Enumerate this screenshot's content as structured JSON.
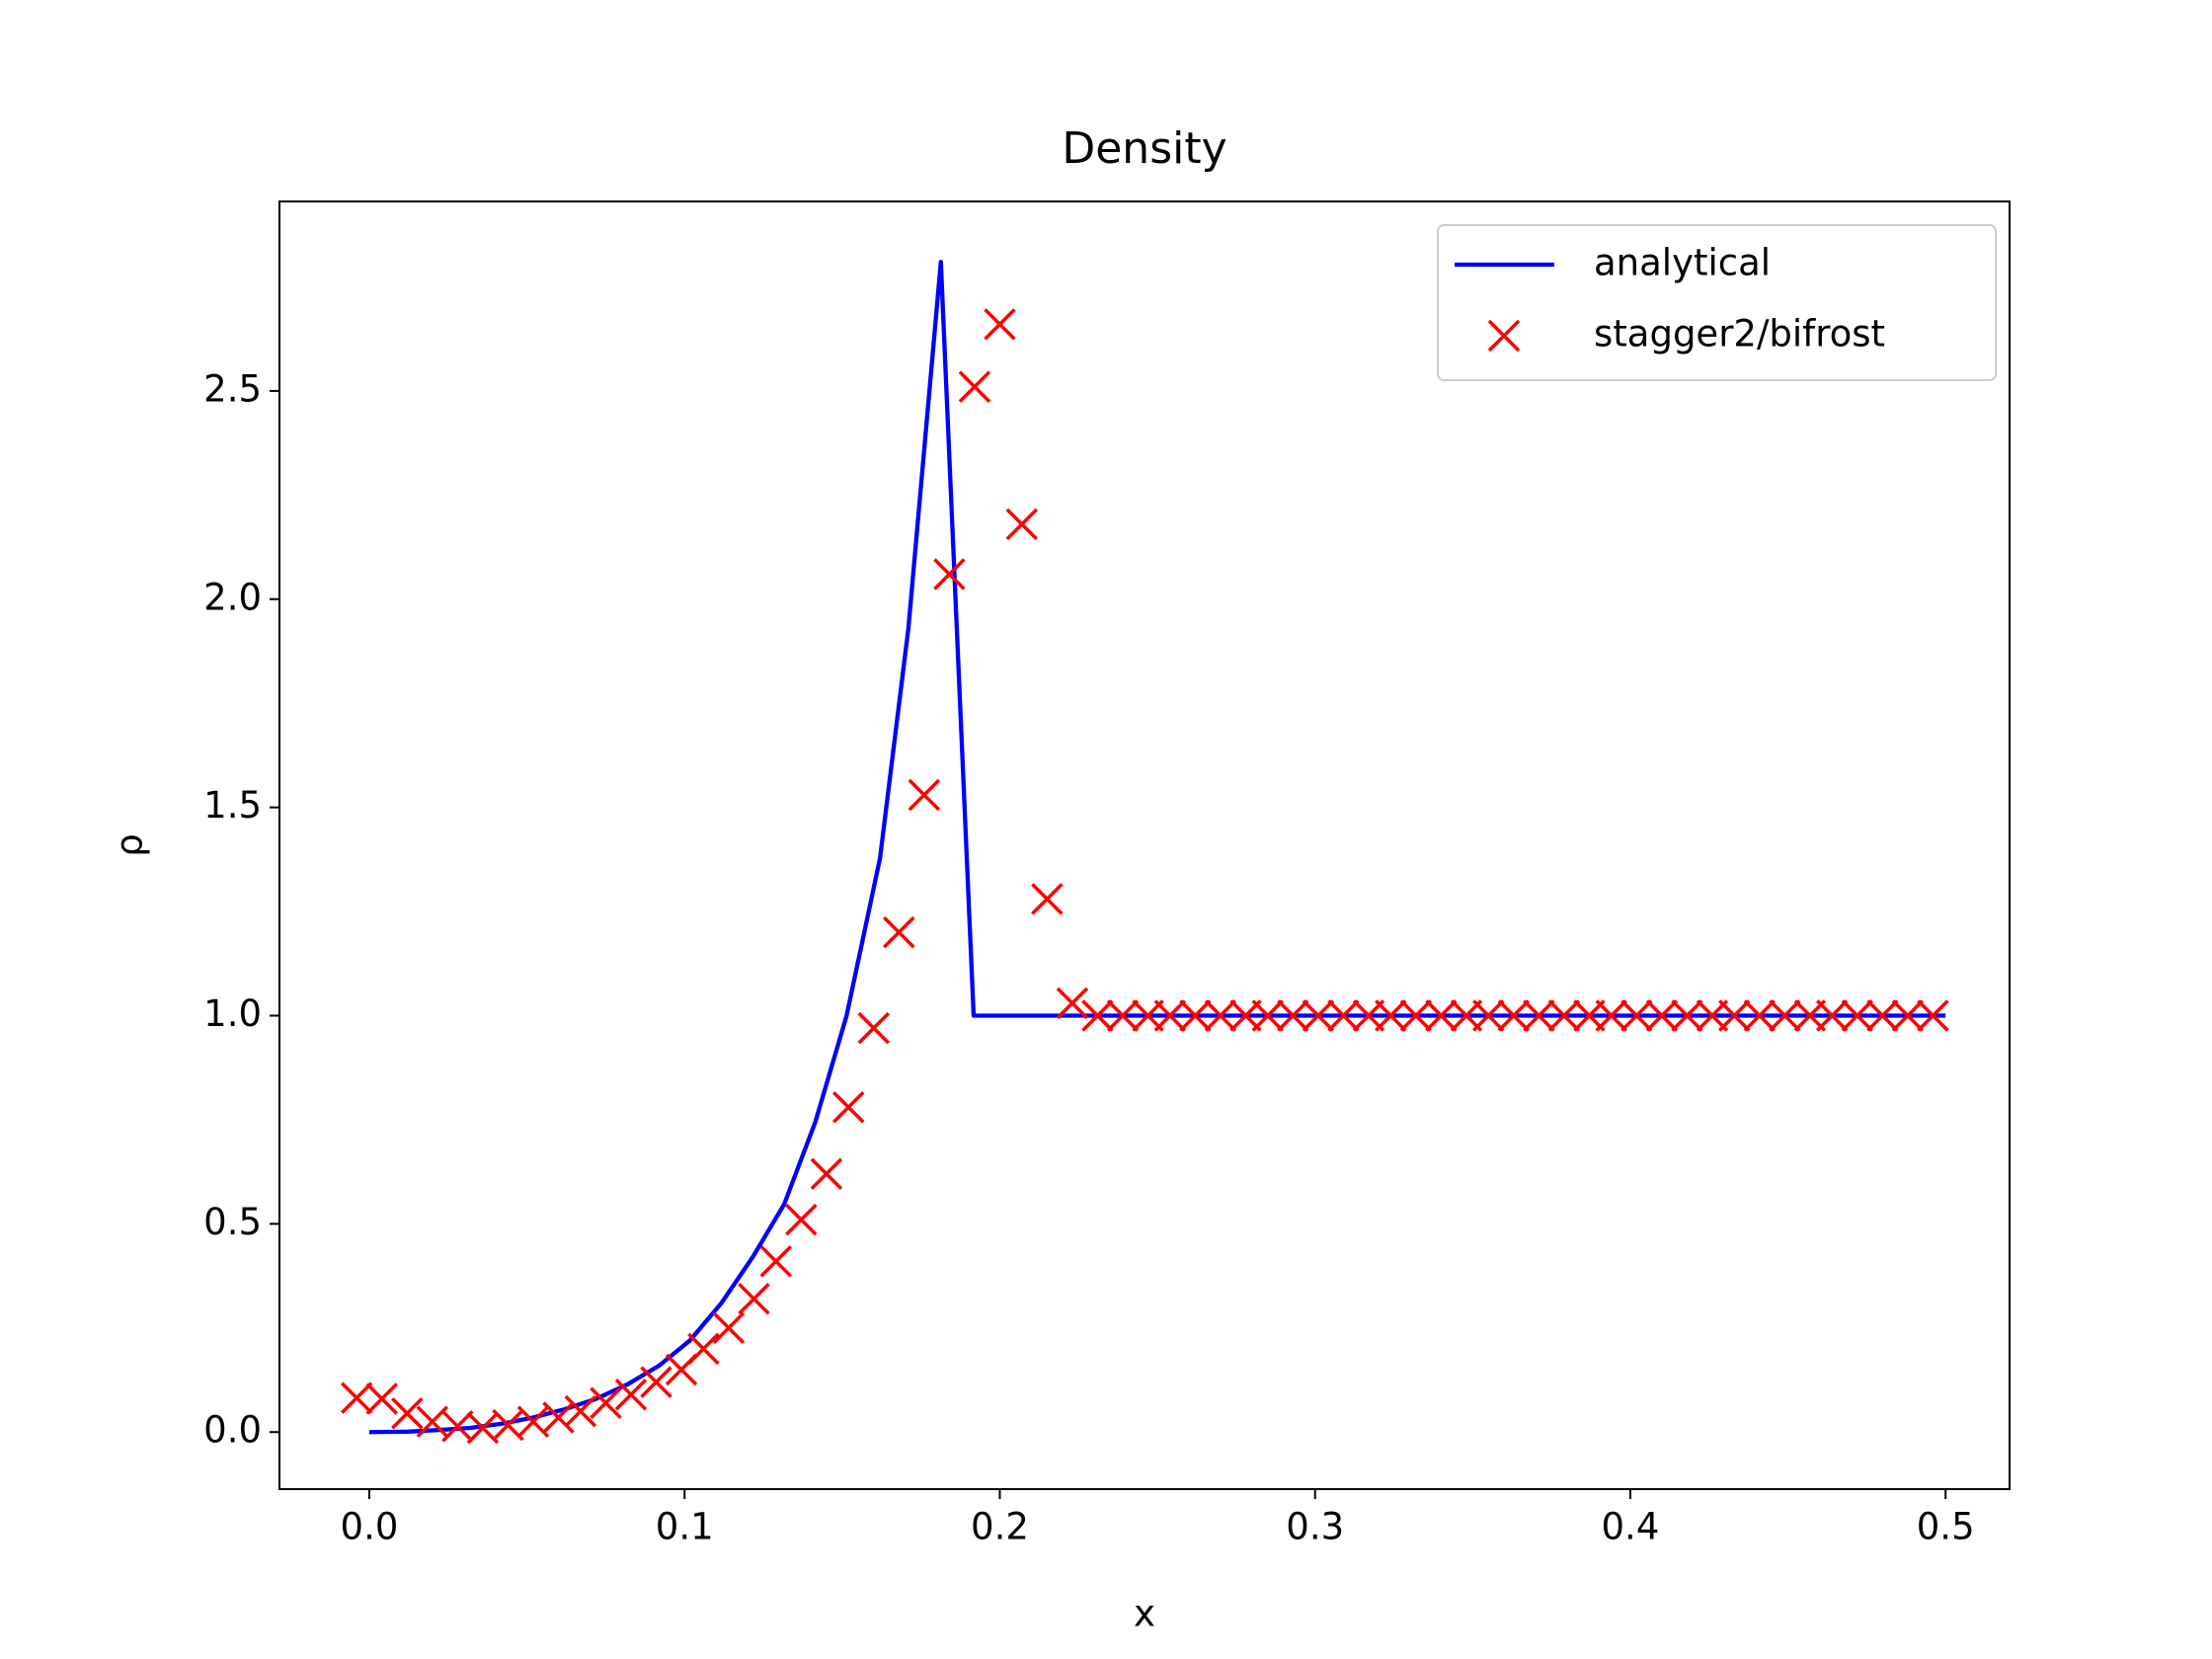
{
  "chart_data": {
    "type": "line",
    "title": "Density",
    "xlabel": "x",
    "ylabel": "ρ",
    "xlim": [
      -0.0285,
      0.5203
    ],
    "ylim": [
      -0.137,
      2.955
    ],
    "xticks": [
      {
        "value": 0,
        "label": "0.0"
      },
      0.1,
      0.2,
      0.3,
      0.4,
      0.5
    ],
    "yticks": [
      {
        "value": 0,
        "label": "0.0"
      },
      0.5,
      {
        "value": 1,
        "label": "1.0"
      },
      1.5,
      {
        "value": 2,
        "label": "2.0"
      },
      2.5
    ],
    "grid": false,
    "legend": "upper right",
    "series": [
      {
        "name": "analytical",
        "color": "#0000ff",
        "style": "line",
        "x": [
          0,
          0.012,
          0.022,
          0.032,
          0.042,
          0.052,
          0.062,
          0.072,
          0.082,
          0.092,
          0.1017,
          0.1117,
          0.1216,
          0.1316,
          0.1415,
          0.1514,
          0.162,
          0.171,
          0.1813,
          0.1917,
          0.5
        ],
        "values": [
          0,
          0.001,
          0.005,
          0.01,
          0.02,
          0.035,
          0.055,
          0.08,
          0.115,
          0.16,
          0.22,
          0.31,
          0.42,
          0.547,
          0.745,
          1.0,
          1.378,
          1.93,
          2.81,
          1.0,
          1.0
        ]
      },
      {
        "name": "stagger2/bifrost",
        "color": "#ff0000",
        "style": "marker",
        "x": [
          -0.004,
          0.004,
          0.012,
          0.02,
          0.028,
          0.036,
          0.044,
          0.052,
          0.06,
          0.067,
          0.075,
          0.083,
          0.091,
          0.099,
          0.106,
          0.114,
          0.122,
          0.129,
          0.137,
          0.145,
          0.152,
          0.16,
          0.168,
          0.176,
          0.184,
          0.192,
          0.2,
          0.207,
          0.215,
          0.223,
          0.231,
          0.239,
          0.247,
          0.254,
          0.262,
          0.27,
          0.278,
          0.285,
          0.293,
          0.301,
          0.309,
          0.317,
          0.324,
          0.332,
          0.34,
          0.348,
          0.355,
          0.363,
          0.371,
          0.379,
          0.387,
          0.394,
          0.402,
          0.41,
          0.418,
          0.426,
          0.433,
          0.441,
          0.449,
          0.457,
          0.464,
          0.472,
          0.48,
          0.488,
          0.496
        ],
        "values": [
          0.082,
          0.08,
          0.045,
          0.025,
          0.014,
          0.01,
          0.017,
          0.025,
          0.035,
          0.05,
          0.07,
          0.09,
          0.12,
          0.15,
          0.2,
          0.25,
          0.32,
          0.41,
          0.51,
          0.62,
          0.78,
          0.97,
          1.2,
          1.53,
          2.06,
          2.51,
          2.66,
          2.18,
          1.28,
          1.03,
          1.0,
          1.0,
          1.0,
          1.0,
          1.0,
          1.0,
          1.0,
          1.0,
          1.0,
          1.0,
          1.0,
          1.0,
          1.0,
          1.0,
          1.0,
          1.0,
          1.0,
          1.0,
          1.0,
          1.0,
          1.0,
          1.0,
          1.0,
          1.0,
          1.0,
          1.0,
          1.0,
          1.0,
          1.0,
          1.0,
          1.0,
          1.0,
          1.0,
          1.0,
          1.0
        ]
      }
    ]
  }
}
